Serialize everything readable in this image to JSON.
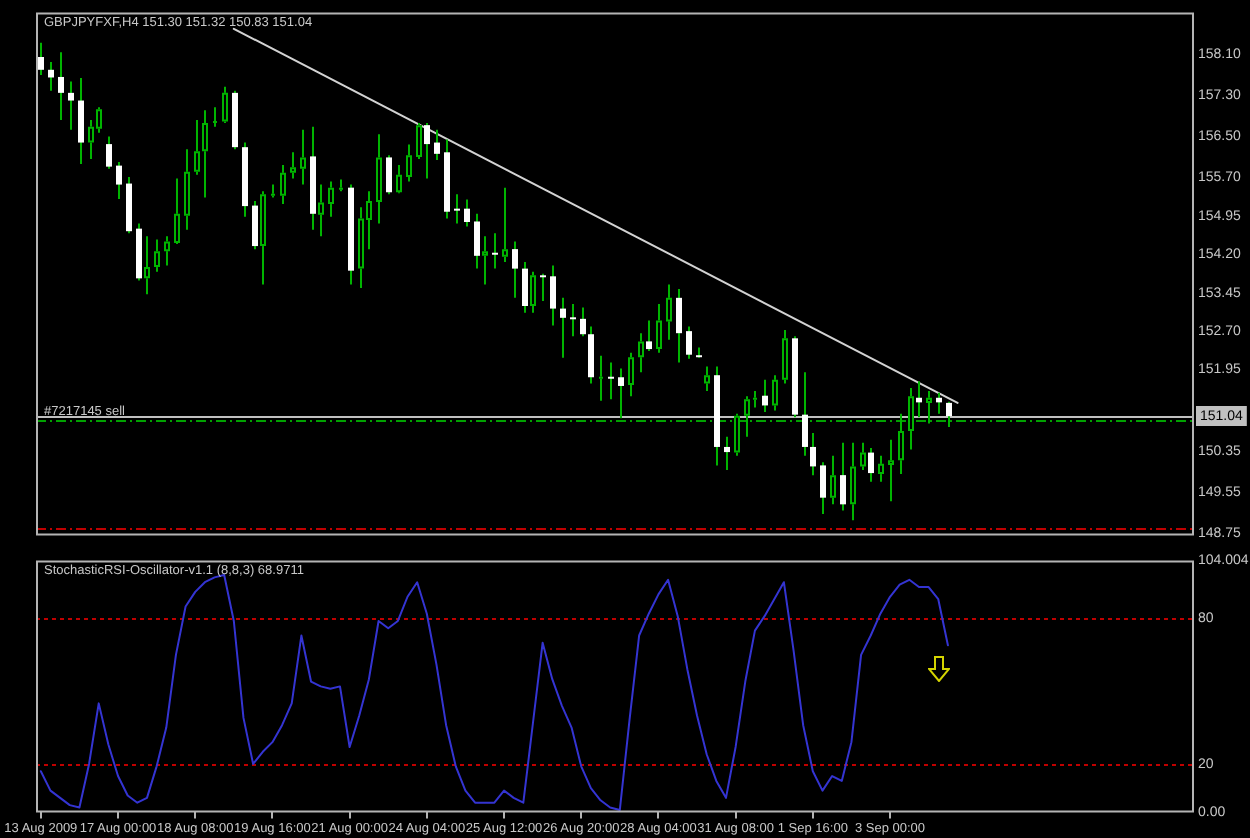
{
  "chart_data": [
    {
      "type": "candlestick",
      "title": "GBPJPYFXF,H4 151.30 151.32 150.83 151.04",
      "categories": [
        null,
        null,
        null,
        null,
        null,
        null,
        null,
        null,
        null,
        null,
        null,
        null,
        null,
        null,
        null,
        null,
        null,
        null,
        null,
        null,
        null,
        null,
        null,
        null,
        null,
        null,
        null,
        null,
        null,
        null,
        null,
        null,
        null,
        null,
        null,
        null,
        null,
        null,
        null,
        null,
        null,
        null,
        null,
        null,
        null,
        null,
        null,
        null,
        null,
        null,
        null,
        null,
        null,
        null,
        null,
        null,
        null,
        null,
        null,
        null,
        null,
        null,
        null,
        null,
        null,
        null,
        null,
        null,
        null,
        null,
        null,
        null,
        null,
        null,
        null,
        null,
        null,
        null,
        null,
        null,
        null,
        null,
        null,
        null,
        null,
        null,
        null,
        null,
        null,
        null,
        null,
        null,
        null,
        null,
        null,
        null,
        null,
        null,
        null,
        null,
        null,
        null,
        null,
        null,
        null,
        null,
        null,
        null,
        null,
        null,
        null,
        null,
        null,
        null,
        null,
        null,
        null,
        null,
        null,
        null
      ],
      "series": [
        {
          "color": "#00b400",
          "ohlc": [
            [
              158.05,
              158.33,
              157.7,
              157.8
            ],
            [
              157.8,
              157.95,
              157.39,
              157.65
            ],
            [
              157.66,
              158.14,
              156.82,
              157.35
            ],
            [
              157.35,
              157.57,
              156.63,
              157.2
            ],
            [
              157.2,
              157.64,
              155.96,
              156.38
            ],
            [
              156.38,
              156.82,
              156.06,
              156.69
            ],
            [
              156.65,
              157.07,
              156.57,
              157.03
            ],
            [
              156.35,
              156.5,
              155.87,
              155.91
            ],
            [
              155.93,
              156.0,
              155.28,
              155.56
            ],
            [
              155.58,
              155.71,
              154.61,
              154.65
            ],
            [
              154.7,
              154.8,
              153.69,
              153.73
            ],
            [
              153.73,
              154.55,
              153.42,
              153.95
            ],
            [
              153.95,
              154.49,
              153.86,
              154.26
            ],
            [
              154.26,
              154.55,
              153.98,
              154.45
            ],
            [
              154.42,
              155.68,
              154.4,
              154.99
            ],
            [
              154.95,
              156.25,
              154.68,
              155.81
            ],
            [
              155.81,
              156.82,
              155.75,
              156.21
            ],
            [
              156.21,
              157.01,
              155.31,
              156.76
            ],
            [
              156.78,
              157.07,
              156.69,
              156.8
            ],
            [
              156.79,
              157.47,
              156.76,
              157.35
            ],
            [
              157.35,
              157.39,
              156.25,
              156.29
            ],
            [
              156.29,
              156.38,
              154.93,
              155.14
            ],
            [
              155.15,
              155.24,
              154.3,
              154.36
            ],
            [
              154.36,
              155.43,
              153.61,
              155.37
            ],
            [
              155.37,
              155.56,
              155.31,
              155.38
            ],
            [
              155.34,
              155.94,
              155.18,
              155.79
            ],
            [
              155.79,
              156.19,
              155.68,
              155.9
            ],
            [
              155.87,
              156.63,
              155.56,
              156.09
            ],
            [
              156.11,
              156.69,
              154.68,
              154.99
            ],
            [
              154.97,
              155.56,
              154.55,
              155.21
            ],
            [
              155.18,
              155.62,
              154.93,
              155.5
            ],
            [
              155.49,
              155.66,
              155.43,
              155.5
            ],
            [
              155.5,
              155.56,
              153.61,
              153.88
            ],
            [
              153.92,
              155.12,
              153.54,
              154.9
            ],
            [
              154.87,
              155.43,
              154.3,
              155.24
            ],
            [
              155.22,
              156.54,
              154.8,
              156.09
            ],
            [
              156.09,
              156.13,
              155.37,
              155.41
            ],
            [
              155.41,
              155.94,
              155.39,
              155.75
            ],
            [
              155.71,
              156.34,
              155.62,
              156.13
            ],
            [
              156.1,
              156.76,
              156.06,
              156.72
            ],
            [
              156.72,
              156.76,
              155.68,
              156.35
            ],
            [
              156.38,
              156.63,
              156.04,
              156.16
            ],
            [
              156.19,
              156.44,
              154.9,
              155.03
            ],
            [
              155.09,
              155.37,
              154.8,
              155.08
            ],
            [
              155.09,
              155.27,
              154.74,
              154.83
            ],
            [
              154.84,
              154.99,
              153.92,
              154.17
            ],
            [
              154.17,
              154.55,
              153.61,
              154.26
            ],
            [
              154.23,
              154.61,
              153.92,
              154.22
            ],
            [
              154.15,
              155.5,
              154.05,
              154.3
            ],
            [
              154.3,
              154.45,
              153.35,
              153.92
            ],
            [
              153.92,
              154.05,
              153.06,
              153.19
            ],
            [
              153.19,
              153.86,
              153.06,
              153.79
            ],
            [
              153.79,
              153.82,
              153.29,
              153.77
            ],
            [
              153.77,
              153.98,
              152.81,
              153.14
            ],
            [
              153.14,
              153.35,
              152.18,
              152.96
            ],
            [
              152.97,
              153.23,
              152.6,
              152.96
            ],
            [
              152.94,
              153.16,
              152.6,
              152.64
            ],
            [
              152.64,
              152.79,
              151.68,
              151.8
            ],
            [
              151.8,
              152.22,
              151.34,
              151.81
            ],
            [
              151.81,
              152.09,
              151.37,
              151.8
            ],
            [
              151.8,
              151.97,
              151.0,
              151.63
            ],
            [
              151.65,
              152.28,
              151.43,
              152.19
            ],
            [
              152.19,
              152.66,
              151.9,
              152.5
            ],
            [
              152.5,
              152.91,
              152.31,
              152.35
            ],
            [
              152.35,
              153.23,
              152.28,
              152.91
            ],
            [
              152.89,
              153.61,
              152.53,
              153.35
            ],
            [
              153.35,
              153.52,
              152.09,
              152.66
            ],
            [
              152.7,
              152.79,
              152.16,
              152.24
            ],
            [
              152.23,
              152.38,
              152.18,
              152.22
            ],
            [
              151.68,
              152.01,
              151.53,
              151.84
            ],
            [
              151.84,
              152.01,
              150.08,
              150.44
            ],
            [
              150.44,
              150.64,
              149.99,
              150.34
            ],
            [
              150.33,
              151.09,
              150.27,
              151.05
            ],
            [
              151.05,
              151.43,
              150.64,
              151.37
            ],
            [
              151.39,
              151.53,
              151.21,
              151.4
            ],
            [
              151.44,
              151.75,
              151.12,
              151.25
            ],
            [
              151.25,
              151.84,
              151.15,
              151.75
            ],
            [
              151.75,
              152.72,
              151.68,
              152.56
            ],
            [
              152.56,
              152.6,
              151.02,
              151.07
            ],
            [
              151.07,
              151.9,
              150.27,
              150.44
            ],
            [
              150.44,
              150.71,
              149.89,
              150.06
            ],
            [
              150.08,
              150.14,
              149.13,
              149.45
            ],
            [
              149.45,
              150.27,
              149.32,
              149.89
            ],
            [
              149.89,
              150.52,
              149.2,
              149.32
            ],
            [
              149.32,
              150.52,
              149.01,
              150.06
            ],
            [
              150.06,
              150.52,
              149.99,
              150.33
            ],
            [
              150.33,
              150.42,
              149.76,
              149.93
            ],
            [
              149.91,
              150.27,
              149.76,
              150.11
            ],
            [
              150.09,
              150.58,
              149.38,
              150.18
            ],
            [
              150.18,
              151.09,
              149.91,
              150.75
            ],
            [
              150.75,
              151.59,
              150.39,
              151.43
            ],
            [
              151.4,
              151.72,
              151.02,
              151.31
            ],
            [
              151.3,
              151.53,
              150.9,
              151.4
            ],
            [
              151.4,
              151.5,
              151.09,
              151.31
            ],
            [
              151.3,
              151.32,
              150.83,
              151.04
            ],
            null,
            null,
            null,
            null,
            null,
            null,
            null,
            null,
            null,
            null,
            null,
            null,
            null,
            null,
            null,
            null,
            null,
            null,
            null,
            null,
            null,
            null,
            null,
            null,
            null
          ],
          "colors": [
            "#ffffff",
            "#ffffff",
            "#ffffff",
            "#ffffff",
            "#ffffff",
            "#000000",
            "#000000",
            "#ffffff",
            "#ffffff",
            "#ffffff",
            "#ffffff",
            "#000000",
            "#000000",
            "#000000",
            "#000000",
            "#000000",
            "#000000",
            "#000000",
            "#000000",
            "#000000",
            "#ffffff",
            "#ffffff",
            "#ffffff",
            "#000000",
            "#000000",
            "#000000",
            "#000000",
            "#000000",
            "#ffffff",
            "#000000",
            "#000000",
            "#000000",
            "#ffffff",
            "#000000",
            "#000000",
            "#000000",
            "#ffffff",
            "#000000",
            "#000000",
            "#000000",
            "#ffffff",
            "#ffffff",
            "#ffffff",
            "#ffffff",
            "#ffffff",
            "#ffffff",
            "#000000",
            "#ffffff",
            "#000000",
            "#ffffff",
            "#ffffff",
            "#000000",
            "#ffffff",
            "#ffffff",
            "#ffffff",
            "#ffffff",
            "#ffffff",
            "#ffffff",
            "#000000",
            "#ffffff",
            "#ffffff",
            "#000000",
            "#000000",
            "#ffffff",
            "#000000",
            "#000000",
            "#ffffff",
            "#ffffff",
            "#ffffff",
            "#000000",
            "#ffffff",
            "#ffffff",
            "#000000",
            "#000000",
            "#000000",
            "#ffffff",
            "#000000",
            "#000000",
            "#ffffff",
            "#ffffff",
            "#ffffff",
            "#ffffff",
            "#000000",
            "#ffffff",
            "#000000",
            "#000000",
            "#ffffff",
            "#000000",
            "#000000",
            "#000000",
            "#000000",
            "#ffffff",
            "#000000",
            "#ffffff",
            "#ffffff",
            null,
            null,
            null,
            null,
            null,
            null,
            null,
            null,
            null,
            null,
            null,
            null,
            null,
            null,
            null,
            null,
            null,
            null,
            null,
            null,
            null,
            null,
            null,
            null,
            null
          ]
        },
        {
          "type": "line",
          "color": "#d2d2d2",
          "values": [
            null,
            null,
            null,
            null,
            null,
            null,
            null,
            null,
            null,
            null,
            null,
            null,
            null,
            null,
            null,
            null,
            null,
            null,
            null,
            null,
            158.6,
            null,
            null,
            null,
            null,
            null,
            null,
            null,
            null,
            null,
            null,
            null,
            null,
            null,
            null,
            null,
            null,
            null,
            null,
            null,
            null,
            null,
            null,
            null,
            null,
            null,
            null,
            null,
            null,
            null,
            null,
            null,
            null,
            null,
            null,
            null,
            null,
            null,
            null,
            null,
            null,
            null,
            null,
            null,
            null,
            null,
            null,
            null,
            null,
            null,
            null,
            null,
            null,
            null,
            null,
            null,
            null,
            null,
            null,
            null,
            null,
            null,
            null,
            null,
            null,
            null,
            null,
            null,
            null,
            null,
            null,
            null,
            null,
            null,
            null,
            151.3,
            null,
            null,
            null,
            null,
            null,
            null,
            null,
            null,
            null,
            null,
            null,
            null,
            null,
            null,
            null,
            null,
            null,
            null,
            null,
            null,
            null,
            null,
            null,
            null
          ]
        }
      ],
      "ylim": [
        148.71,
        158.92
      ],
      "yticks": [
        {
          "value": 158.1,
          "label": "158.10"
        },
        {
          "value": 157.3,
          "label": "157.30"
        },
        {
          "value": 156.5,
          "label": "156.50"
        },
        {
          "value": 155.7,
          "label": "155.70"
        },
        154.95,
        {
          "value": 154.2,
          "label": "154.20"
        },
        153.45,
        {
          "value": 152.7,
          "label": "152.70"
        },
        151.95,
        150.35,
        149.55,
        148.75
      ],
      "tick_labels": "y",
      "ref_lines": [
        {
          "axis": "y",
          "value": 151.04,
          "label": "151.04",
          "color": "#c0c0c0"
        },
        {
          "axis": "y",
          "value": 150.97,
          "label": "#7217145 sell",
          "color": "#00a000",
          "line_style": "dashed"
        },
        {
          "axis": "y",
          "value": 148.86,
          "color": "#c00000",
          "line_style": "dashed"
        }
      ]
    },
    {
      "type": "line",
      "title": "StochasticRSI-Oscillator-v1.1 (8,8,3) 68.9711",
      "categories": [
        "13 Aug 2009",
        null,
        null,
        null,
        null,
        null,
        null,
        null,
        "17 Aug 00:00",
        null,
        null,
        null,
        null,
        null,
        null,
        null,
        "18 Aug 08:00",
        null,
        null,
        null,
        null,
        null,
        null,
        null,
        "19 Aug 16:00",
        null,
        null,
        null,
        null,
        null,
        null,
        null,
        "21 Aug 00:00",
        null,
        null,
        null,
        null,
        null,
        null,
        null,
        "24 Aug 04:00",
        null,
        null,
        null,
        null,
        null,
        null,
        null,
        "25 Aug 12:00",
        null,
        null,
        null,
        null,
        null,
        null,
        null,
        "26 Aug 20:00",
        null,
        null,
        null,
        null,
        null,
        null,
        null,
        "28 Aug 04:00",
        null,
        null,
        null,
        null,
        null,
        null,
        null,
        "31 Aug 08:00",
        null,
        null,
        null,
        null,
        null,
        null,
        null,
        "1 Sep 16:00",
        null,
        null,
        null,
        null,
        null,
        null,
        null,
        "3 Sep 00:00",
        null,
        null,
        null,
        null,
        null,
        null,
        null,
        null,
        null,
        null,
        null,
        null,
        null,
        null,
        null,
        null,
        null,
        null,
        null,
        null,
        null,
        null,
        null,
        null,
        null,
        null,
        null,
        null,
        null,
        null,
        null
      ],
      "series": [
        {
          "color": "#3434d2",
          "values": [
            17,
            9,
            6,
            3,
            2,
            20,
            45,
            28,
            15,
            7,
            4,
            6,
            19,
            35,
            65,
            85,
            91,
            95,
            97,
            98,
            79,
            39,
            20,
            25,
            29,
            36,
            45,
            73,
            54,
            52,
            51,
            52,
            27,
            40,
            55,
            79,
            76,
            79,
            89,
            95,
            82,
            61,
            36,
            19,
            9,
            4,
            4,
            4,
            9,
            6,
            4,
            37,
            70,
            55,
            44,
            35,
            19,
            10,
            5,
            2,
            1,
            38,
            73,
            82,
            90,
            96,
            81,
            59,
            40,
            24,
            13,
            6,
            27,
            54,
            75,
            81,
            88,
            95,
            67,
            36,
            17,
            9,
            15,
            13,
            29,
            65,
            73,
            82,
            89,
            94,
            96,
            93,
            93,
            88,
            68.9711,
            null,
            null,
            null,
            null,
            null,
            null,
            null,
            null,
            null,
            null,
            null,
            null,
            null,
            null,
            null,
            null,
            null,
            null,
            null,
            null,
            null,
            null,
            null,
            null,
            null
          ]
        }
      ],
      "ylim": [
        0,
        104.004
      ],
      "yticks": [
        {
          "value": 104.004,
          "label": "104.004"
        },
        80,
        20,
        {
          "value": 0,
          "label": "0.00"
        }
      ],
      "ref_lines": [
        {
          "axis": "y",
          "value": 80,
          "color": "#c00000",
          "line_style": "dotted"
        },
        {
          "axis": "y",
          "value": 20,
          "color": "#c00000",
          "line_style": "dotted"
        }
      ]
    }
  ]
}
